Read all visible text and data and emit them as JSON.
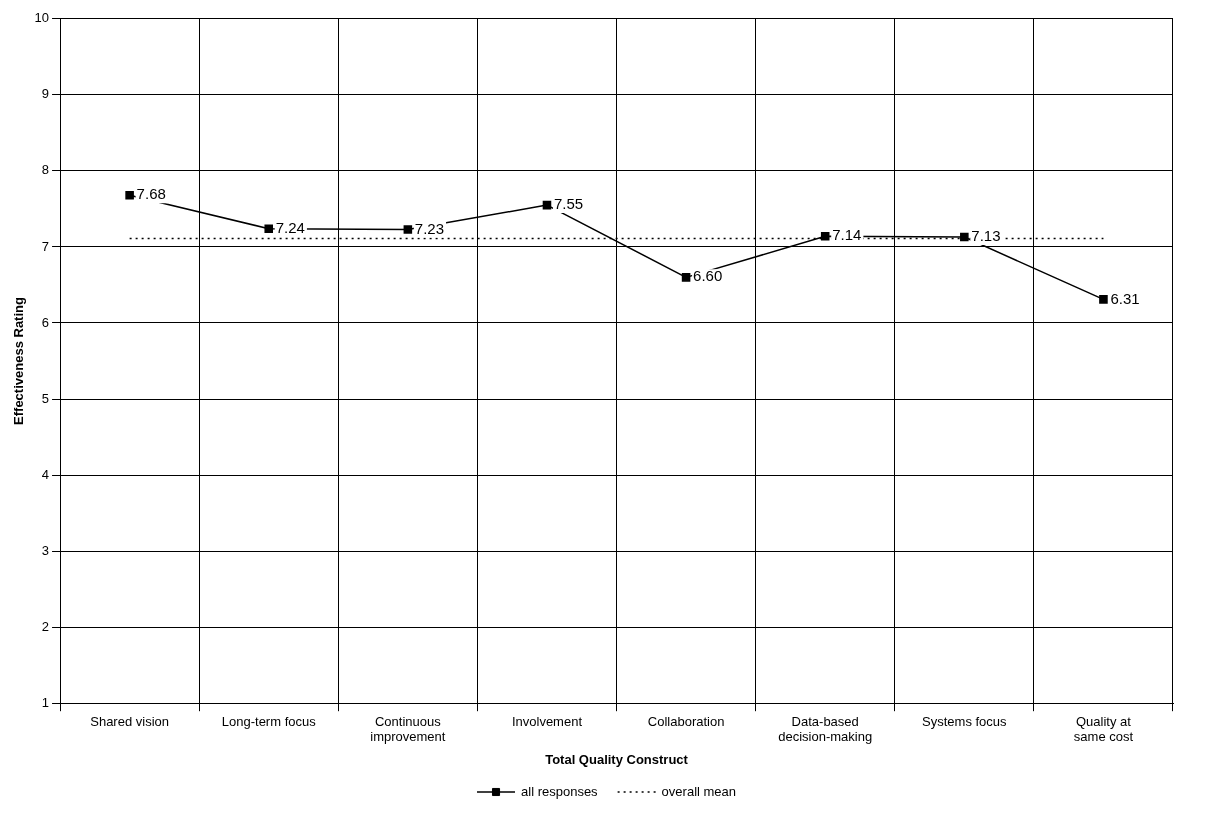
{
  "chart_data": {
    "type": "line",
    "xlabel": "Total Quality Construct",
    "ylabel": "Effectiveness Rating",
    "categories": [
      "Shared vision",
      "Long-term focus",
      "Continuous improvement",
      "Involvement",
      "Collaboration",
      "Data-based decision-making",
      "Systems focus",
      "Quality at same cost"
    ],
    "series": [
      {
        "name": "all responses",
        "color": "#000000",
        "values": [
          7.68,
          7.24,
          7.23,
          7.55,
          6.6,
          7.14,
          7.13,
          6.31
        ],
        "value_labels": [
          "7.68",
          "7.24",
          "7.23",
          "7.55",
          "6.60",
          "7.14",
          "7.13",
          "6.31"
        ],
        "marker": "square",
        "line_style": "solid"
      },
      {
        "name": "overall mean",
        "color": "#000000",
        "values": [
          7.11,
          7.11,
          7.11,
          7.11,
          7.11,
          7.11,
          7.11,
          7.11
        ],
        "marker": "none",
        "line_style": "dotted"
      }
    ],
    "ylim": [
      1,
      10
    ],
    "yticks": [
      1,
      2,
      3,
      4,
      5,
      6,
      7,
      8,
      9,
      10
    ],
    "grid": true,
    "legend": "bottom"
  }
}
